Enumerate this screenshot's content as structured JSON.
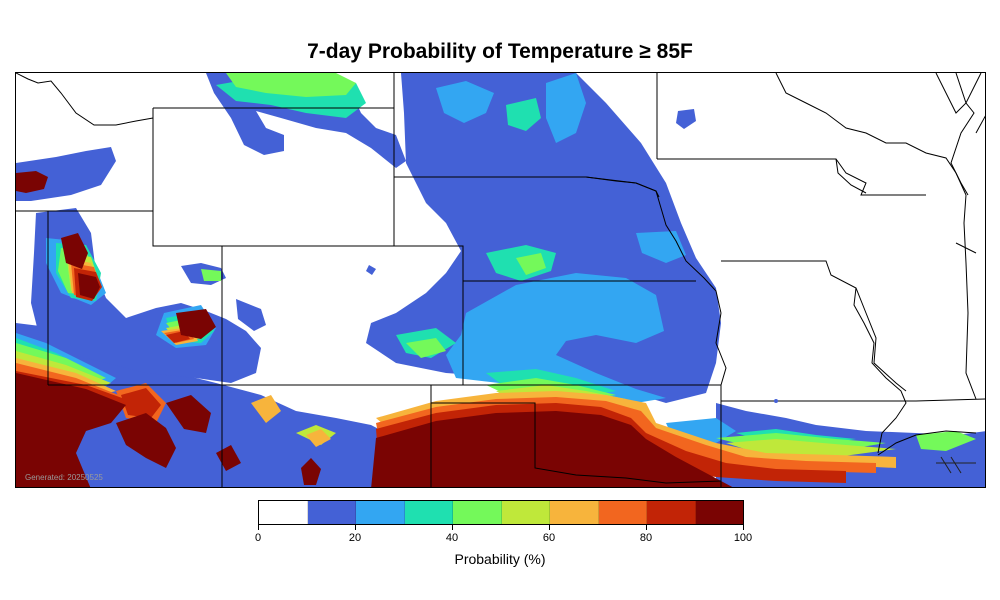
{
  "title": "7-day Probability of Temperature ≥ 85F",
  "footer_generated": "Generated: 20250525",
  "colorbar": {
    "label": "Probability (%)",
    "ticks": [
      "0",
      "20",
      "40",
      "60",
      "80",
      "100"
    ],
    "bins": [
      {
        "range": [
          0,
          10
        ],
        "color": "#ffffff"
      },
      {
        "range": [
          10,
          20
        ],
        "color": "#4461d6"
      },
      {
        "range": [
          20,
          30
        ],
        "color": "#33a6f2"
      },
      {
        "range": [
          30,
          40
        ],
        "color": "#1fe0b0"
      },
      {
        "range": [
          40,
          50
        ],
        "color": "#74f95a"
      },
      {
        "range": [
          50,
          60
        ],
        "color": "#bfe83a"
      },
      {
        "range": [
          60,
          70
        ],
        "color": "#f7b43c"
      },
      {
        "range": [
          70,
          80
        ],
        "color": "#f2661f"
      },
      {
        "range": [
          80,
          90
        ],
        "color": "#c22406"
      },
      {
        "range": [
          90,
          100
        ],
        "color": "#7a0403"
      }
    ]
  },
  "map": {
    "region": "Central United States",
    "background_color": "#ffffff",
    "border_color": "#000000"
  }
}
